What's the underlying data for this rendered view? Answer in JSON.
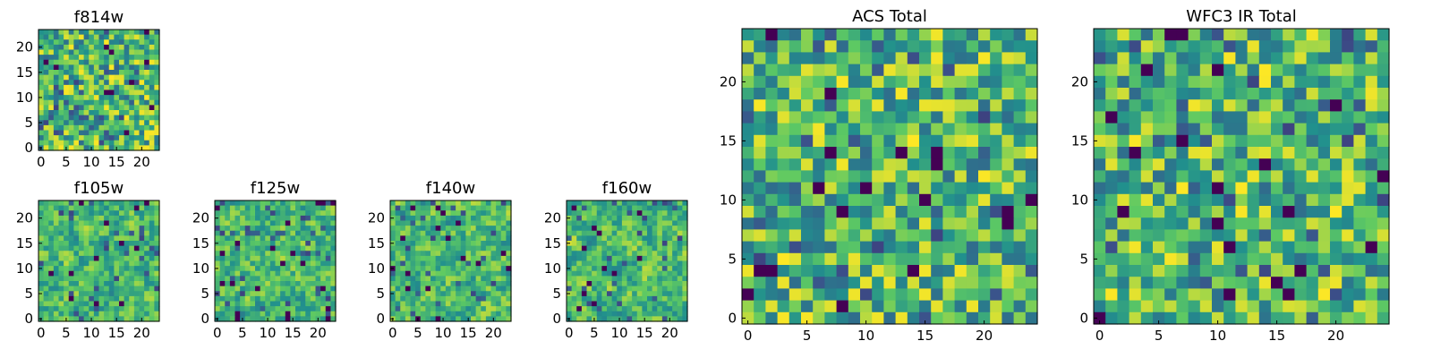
{
  "chart_data": [
    {
      "type": "heatmap",
      "title": "f814w",
      "grid": 24,
      "seed": 11,
      "noise": "fine",
      "xticks": [
        0,
        5,
        10,
        15,
        20
      ],
      "yticks": [
        0,
        5,
        10,
        15,
        20
      ],
      "xlim": [
        0,
        24
      ],
      "ylim": [
        0,
        24
      ]
    },
    {
      "type": "heatmap",
      "title": "f105w",
      "grid": 24,
      "seed": 23,
      "noise": "smooth",
      "xticks": [
        0,
        5,
        10,
        15,
        20
      ],
      "yticks": [
        0,
        5,
        10,
        15,
        20
      ],
      "xlim": [
        0,
        24
      ],
      "ylim": [
        0,
        24
      ]
    },
    {
      "type": "heatmap",
      "title": "f125w",
      "grid": 24,
      "seed": 37,
      "noise": "smooth",
      "xticks": [
        0,
        5,
        10,
        15,
        20
      ],
      "yticks": [
        0,
        5,
        10,
        15,
        20
      ],
      "xlim": [
        0,
        24
      ],
      "ylim": [
        0,
        24
      ]
    },
    {
      "type": "heatmap",
      "title": "f140w",
      "grid": 24,
      "seed": 41,
      "noise": "smooth",
      "xticks": [
        0,
        5,
        10,
        15,
        20
      ],
      "yticks": [
        0,
        5,
        10,
        15,
        20
      ],
      "xlim": [
        0,
        24
      ],
      "ylim": [
        0,
        24
      ]
    },
    {
      "type": "heatmap",
      "title": "f160w",
      "grid": 24,
      "seed": 53,
      "noise": "smooth",
      "xticks": [
        0,
        5,
        10,
        15,
        20
      ],
      "yticks": [
        0,
        5,
        10,
        15,
        20
      ],
      "xlim": [
        0,
        24
      ],
      "ylim": [
        0,
        24
      ]
    },
    {
      "type": "heatmap",
      "title": "ACS Total",
      "grid": 25,
      "seed": 67,
      "noise": "fine",
      "xticks": [
        0,
        5,
        10,
        15,
        20
      ],
      "yticks": [
        0,
        5,
        10,
        15,
        20
      ],
      "xlim": [
        0,
        25
      ],
      "ylim": [
        0,
        25
      ]
    },
    {
      "type": "heatmap",
      "title": "WFC3 IR Total",
      "grid": 25,
      "seed": 79,
      "noise": "fine",
      "xticks": [
        0,
        5,
        10,
        15,
        20
      ],
      "yticks": [
        0,
        5,
        10,
        15,
        20
      ],
      "xlim": [
        0,
        25
      ],
      "ylim": [
        0,
        25
      ]
    }
  ],
  "colors": {
    "colormap": [
      "#440154",
      "#3b528b",
      "#21908d",
      "#5dc963",
      "#fde725"
    ]
  }
}
